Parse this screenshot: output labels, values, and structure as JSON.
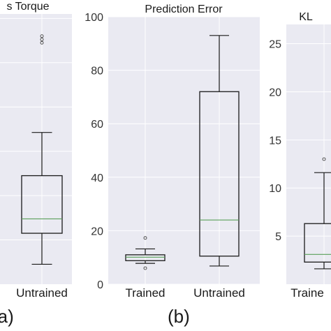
{
  "panel_labels": [
    "(a)",
    "(b)"
  ],
  "chart_data": [
    {
      "type": "box",
      "panel": "a",
      "title": "Actuators Torque",
      "visible_title": "s Torque",
      "categories": [
        "Untrained"
      ],
      "boxes": [
        {
          "category": "Untrained",
          "whisker_low": 0.9,
          "q1": 2.3,
          "median": 2.95,
          "q3": 4.9,
          "whisker_high": 6.85,
          "outliers": [
            10.9,
            11.05,
            11.2
          ]
        }
      ],
      "ylim": [
        0,
        12.2
      ],
      "grid": true
    },
    {
      "type": "box",
      "panel": "b",
      "title": "Prediction Error",
      "categories": [
        "Trained",
        "Untrained"
      ],
      "yticks": [
        0,
        20,
        40,
        60,
        80,
        100
      ],
      "boxes": [
        {
          "category": "Trained",
          "whisker_low": 7.8,
          "q1": 8.8,
          "median": 10.1,
          "q3": 11.0,
          "whisker_high": 13.2,
          "outliers": [
            6.0,
            17.3
          ]
        },
        {
          "category": "Untrained",
          "whisker_low": 6.8,
          "q1": 10.5,
          "median": 24.0,
          "q3": 72.0,
          "whisker_high": 93.0,
          "outliers": []
        }
      ],
      "ylim": [
        0,
        100
      ],
      "grid": true
    },
    {
      "type": "box",
      "panel": "c",
      "title": "KL",
      "categories": [
        "Trained"
      ],
      "visible_category": "Traine",
      "yticks": [
        5,
        10,
        15,
        20,
        25
      ],
      "boxes": [
        {
          "category": "Trained",
          "whisker_low": 1.6,
          "q1": 2.3,
          "median": 3.1,
          "q3": 6.3,
          "whisker_high": 11.6,
          "outliers": [
            13.0
          ]
        }
      ],
      "ylim": [
        0,
        27
      ],
      "grid": true
    }
  ]
}
